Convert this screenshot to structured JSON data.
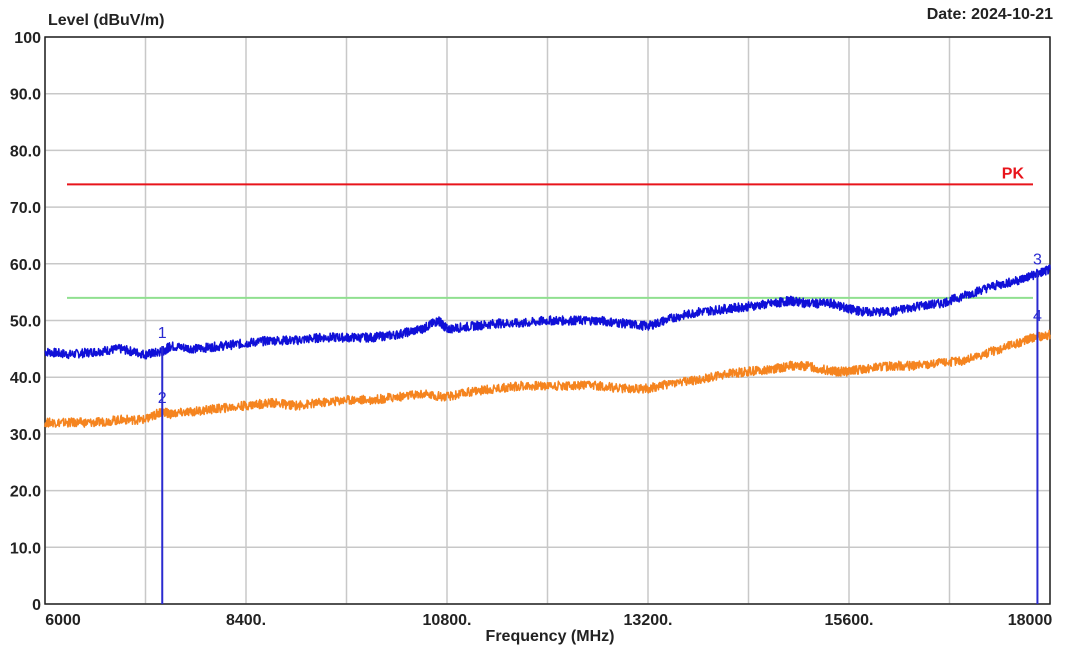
{
  "header": {
    "ylabel": "Level (dBuV/m)",
    "date": "Date: 2024-10-21"
  },
  "chart_data": {
    "type": "line",
    "xlabel": "Frequency (MHz)",
    "ylabel": "Level (dBuV/m)",
    "xlim": [
      6000,
      18000
    ],
    "ylim": [
      0,
      100
    ],
    "grid": true,
    "x_ticks": [
      {
        "value": 6000,
        "label": "6000"
      },
      {
        "value": 8400,
        "label": "8400."
      },
      {
        "value": 10800,
        "label": "10800."
      },
      {
        "value": 13200,
        "label": "13200."
      },
      {
        "value": 15600,
        "label": "15600."
      },
      {
        "value": 18000,
        "label": "18000"
      }
    ],
    "y_ticks": [
      {
        "value": 0,
        "label": "0"
      },
      {
        "value": 10,
        "label": "10.0"
      },
      {
        "value": 20,
        "label": "20.0"
      },
      {
        "value": 30,
        "label": "30.0"
      },
      {
        "value": 40,
        "label": "40.0"
      },
      {
        "value": 50,
        "label": "50.0"
      },
      {
        "value": 60,
        "label": "60.0"
      },
      {
        "value": 70,
        "label": "70.0"
      },
      {
        "value": 80,
        "label": "80.0"
      },
      {
        "value": 90,
        "label": "90.0"
      },
      {
        "value": 100,
        "label": "100"
      }
    ],
    "limit_lines": [
      {
        "label": "PK",
        "value": 74,
        "color": "#e8141b"
      },
      {
        "label": "",
        "value": 54,
        "color": "#90e090"
      }
    ],
    "series": [
      {
        "color": "#1010d8",
        "x": [
          6000,
          6300,
          6600,
          6900,
          7200,
          7400,
          7500,
          7800,
          8100,
          8400,
          8700,
          9000,
          9300,
          9600,
          9900,
          10200,
          10500,
          10700,
          10800,
          11100,
          11400,
          11700,
          12000,
          12300,
          12600,
          12900,
          13200,
          13500,
          13800,
          14100,
          14400,
          14700,
          14900,
          15100,
          15400,
          15600,
          15800,
          16100,
          16400,
          16700,
          17000,
          17300,
          17600,
          17800,
          18000
        ],
        "values": [
          44.5,
          44,
          44.5,
          45,
          44,
          44.5,
          45.5,
          45,
          45.5,
          46,
          46.5,
          46.5,
          47,
          47,
          47,
          47.5,
          48.5,
          50,
          48.5,
          49,
          49.5,
          49.5,
          50,
          50,
          50,
          49.5,
          49,
          50.5,
          51.5,
          52,
          52.5,
          53,
          53.5,
          53,
          53,
          52,
          51.5,
          51.5,
          52.5,
          53,
          54.5,
          56,
          57,
          58,
          59
        ]
      },
      {
        "color": "#f5841f",
        "x": [
          6000,
          6300,
          6600,
          6900,
          7200,
          7400,
          7500,
          7800,
          8100,
          8400,
          8700,
          9000,
          9300,
          9600,
          9900,
          10200,
          10500,
          10800,
          11100,
          11400,
          11700,
          12000,
          12300,
          12600,
          12900,
          13200,
          13500,
          13800,
          14100,
          14400,
          14700,
          14900,
          15100,
          15400,
          15600,
          15800,
          16100,
          16400,
          16700,
          17000,
          17300,
          17600,
          17800,
          18000
        ],
        "values": [
          32,
          32,
          32,
          32.5,
          32.5,
          34,
          33.5,
          34,
          34.5,
          35,
          35.5,
          35,
          35.5,
          36,
          36,
          36.5,
          37,
          36.5,
          37.5,
          38,
          38.5,
          38.5,
          38.5,
          38.5,
          38,
          38,
          39,
          39.5,
          40.5,
          41,
          41.5,
          42,
          42,
          41,
          41,
          41.5,
          42,
          42,
          42.5,
          43,
          44.5,
          46,
          47,
          47.5
        ]
      }
    ],
    "markers": [
      {
        "label": "1",
        "x": 7400,
        "y": 45.5,
        "color": "#2a2ad0"
      },
      {
        "label": "2",
        "x": 7400,
        "y": 34,
        "color": "#2a2ad0"
      },
      {
        "label": "3",
        "x": 17850,
        "y": 58.5,
        "color": "#2a2ad0"
      },
      {
        "label": "4",
        "x": 17850,
        "y": 48.5,
        "color": "#2a2ad0"
      }
    ]
  }
}
